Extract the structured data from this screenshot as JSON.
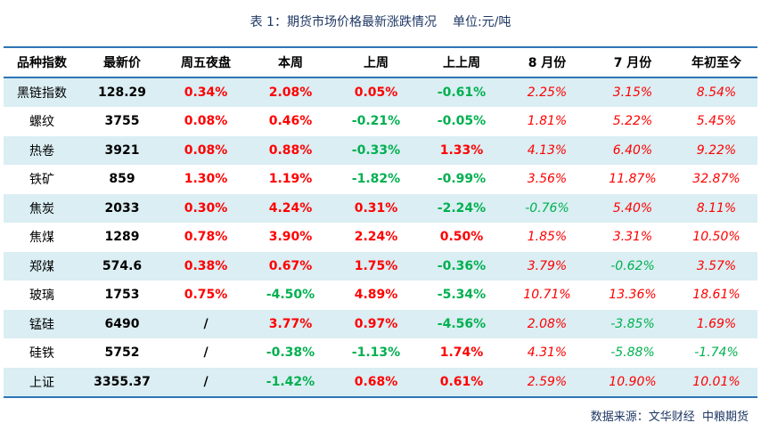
{
  "title": {
    "text": "表 1：期货市场价格最新涨跌情况",
    "unit": "单位:元/吨"
  },
  "colors": {
    "up": "#ff0000",
    "down": "#00b050",
    "neutral": "#000000",
    "header_border": "#2e75b6",
    "band": "#daeef3"
  },
  "table": {
    "headers": [
      "品种指数",
      "最新价",
      "周五夜盘",
      "本周",
      "上周",
      "上上周",
      "8 月份",
      "7 月份",
      "年初至今"
    ],
    "rows": [
      {
        "name": "黑链指数",
        "price": "128.29",
        "night": "0.34%",
        "this_week": "2.08%",
        "last_week": "0.05%",
        "prev_week": "-0.61%",
        "aug": "2.25%",
        "jul": "3.15%",
        "ytd": "8.54%"
      },
      {
        "name": "螺纹",
        "price": "3755",
        "night": "0.08%",
        "this_week": "0.46%",
        "last_week": "-0.21%",
        "prev_week": "-0.05%",
        "aug": "1.81%",
        "jul": "5.22%",
        "ytd": "5.45%"
      },
      {
        "name": "热卷",
        "price": "3921",
        "night": "0.08%",
        "this_week": "0.88%",
        "last_week": "-0.33%",
        "prev_week": "1.33%",
        "aug": "4.13%",
        "jul": "6.40%",
        "ytd": "9.22%"
      },
      {
        "name": "铁矿",
        "price": "859",
        "night": "1.30%",
        "this_week": "1.19%",
        "last_week": "-1.82%",
        "prev_week": "-0.99%",
        "aug": "3.56%",
        "jul": "11.87%",
        "ytd": "32.87%"
      },
      {
        "name": "焦炭",
        "price": "2033",
        "night": "0.30%",
        "this_week": "4.24%",
        "last_week": "0.31%",
        "prev_week": "-2.24%",
        "aug": "-0.76%",
        "jul": "5.40%",
        "ytd": "8.11%"
      },
      {
        "name": "焦煤",
        "price": "1289",
        "night": "0.78%",
        "this_week": "3.90%",
        "last_week": "2.24%",
        "prev_week": "0.50%",
        "aug": "1.85%",
        "jul": "3.31%",
        "ytd": "10.50%"
      },
      {
        "name": "郑煤",
        "price": "574.6",
        "night": "0.38%",
        "this_week": "0.67%",
        "last_week": "1.75%",
        "prev_week": "-0.36%",
        "aug": "3.79%",
        "jul": "-0.62%",
        "ytd": "3.57%"
      },
      {
        "name": "玻璃",
        "price": "1753",
        "night": "0.75%",
        "this_week": "-4.50%",
        "last_week": "4.89%",
        "prev_week": "-5.34%",
        "aug": "10.71%",
        "jul": "13.36%",
        "ytd": "18.61%"
      },
      {
        "name": "锰硅",
        "price": "6490",
        "night": "/",
        "this_week": "3.77%",
        "last_week": "0.97%",
        "prev_week": "-4.56%",
        "aug": "2.08%",
        "jul": "-3.85%",
        "ytd": "1.69%"
      },
      {
        "name": "硅铁",
        "price": "5752",
        "night": "/",
        "this_week": "-0.38%",
        "last_week": "-1.13%",
        "prev_week": "1.74%",
        "aug": "4.31%",
        "jul": "-5.88%",
        "ytd": "-1.74%"
      },
      {
        "name": "上证",
        "price": "3355.37",
        "night": "/",
        "this_week": "-1.42%",
        "last_week": "0.68%",
        "prev_week": "0.61%",
        "aug": "2.59%",
        "jul": "10.90%",
        "ytd": "10.01%"
      }
    ]
  },
  "source": "数据来源：文华财经  中粮期货"
}
